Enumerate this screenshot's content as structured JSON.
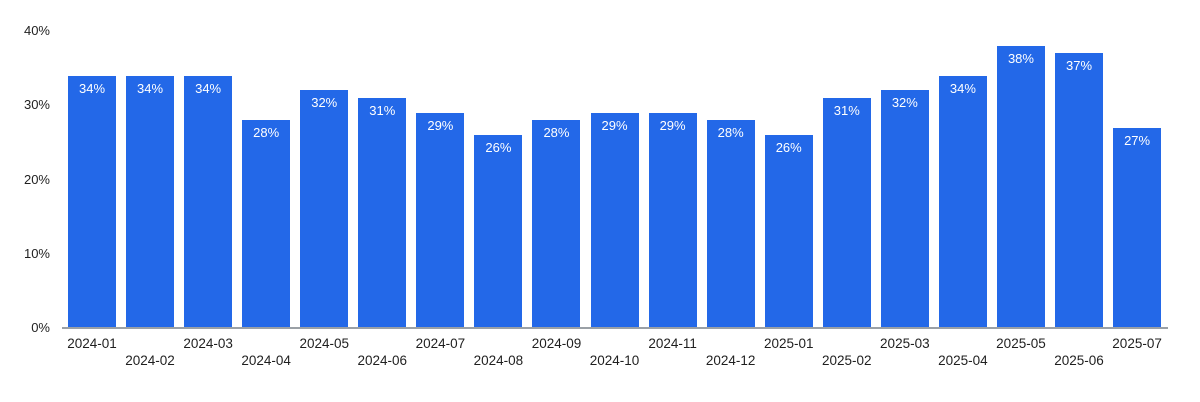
{
  "chart_data": {
    "type": "bar",
    "title": "",
    "xlabel": "",
    "ylabel": "",
    "categories": [
      "2024-01",
      "2024-02",
      "2024-03",
      "2024-04",
      "2024-05",
      "2024-06",
      "2024-07",
      "2024-08",
      "2024-09",
      "2024-10",
      "2024-11",
      "2024-12",
      "2025-01",
      "2025-02",
      "2025-03",
      "2025-04",
      "2025-05",
      "2025-06",
      "2025-07"
    ],
    "values": [
      34,
      34,
      34,
      28,
      32,
      31,
      29,
      26,
      28,
      29,
      29,
      28,
      26,
      31,
      32,
      34,
      38,
      37,
      27
    ],
    "value_unit": "%",
    "bar_labels": [
      "34%",
      "34%",
      "34%",
      "28%",
      "32%",
      "31%",
      "29%",
      "26%",
      "28%",
      "29%",
      "29%",
      "28%",
      "26%",
      "31%",
      "32%",
      "34%",
      "38%",
      "37%",
      "27%"
    ],
    "ylim": [
      0,
      40
    ],
    "yticks": [
      0,
      10,
      20,
      30,
      40
    ],
    "ytick_labels": [
      "0%",
      "10%",
      "20%",
      "30%",
      "40%"
    ],
    "grid": false,
    "legend": "none",
    "x_axis_staggered": true,
    "colors": {
      "bar": "#2368e8",
      "bar_label_text": "#ffffff",
      "axis_text": "#1f1f1f",
      "baseline": "#9aa0a6",
      "background": "#ffffff"
    }
  }
}
